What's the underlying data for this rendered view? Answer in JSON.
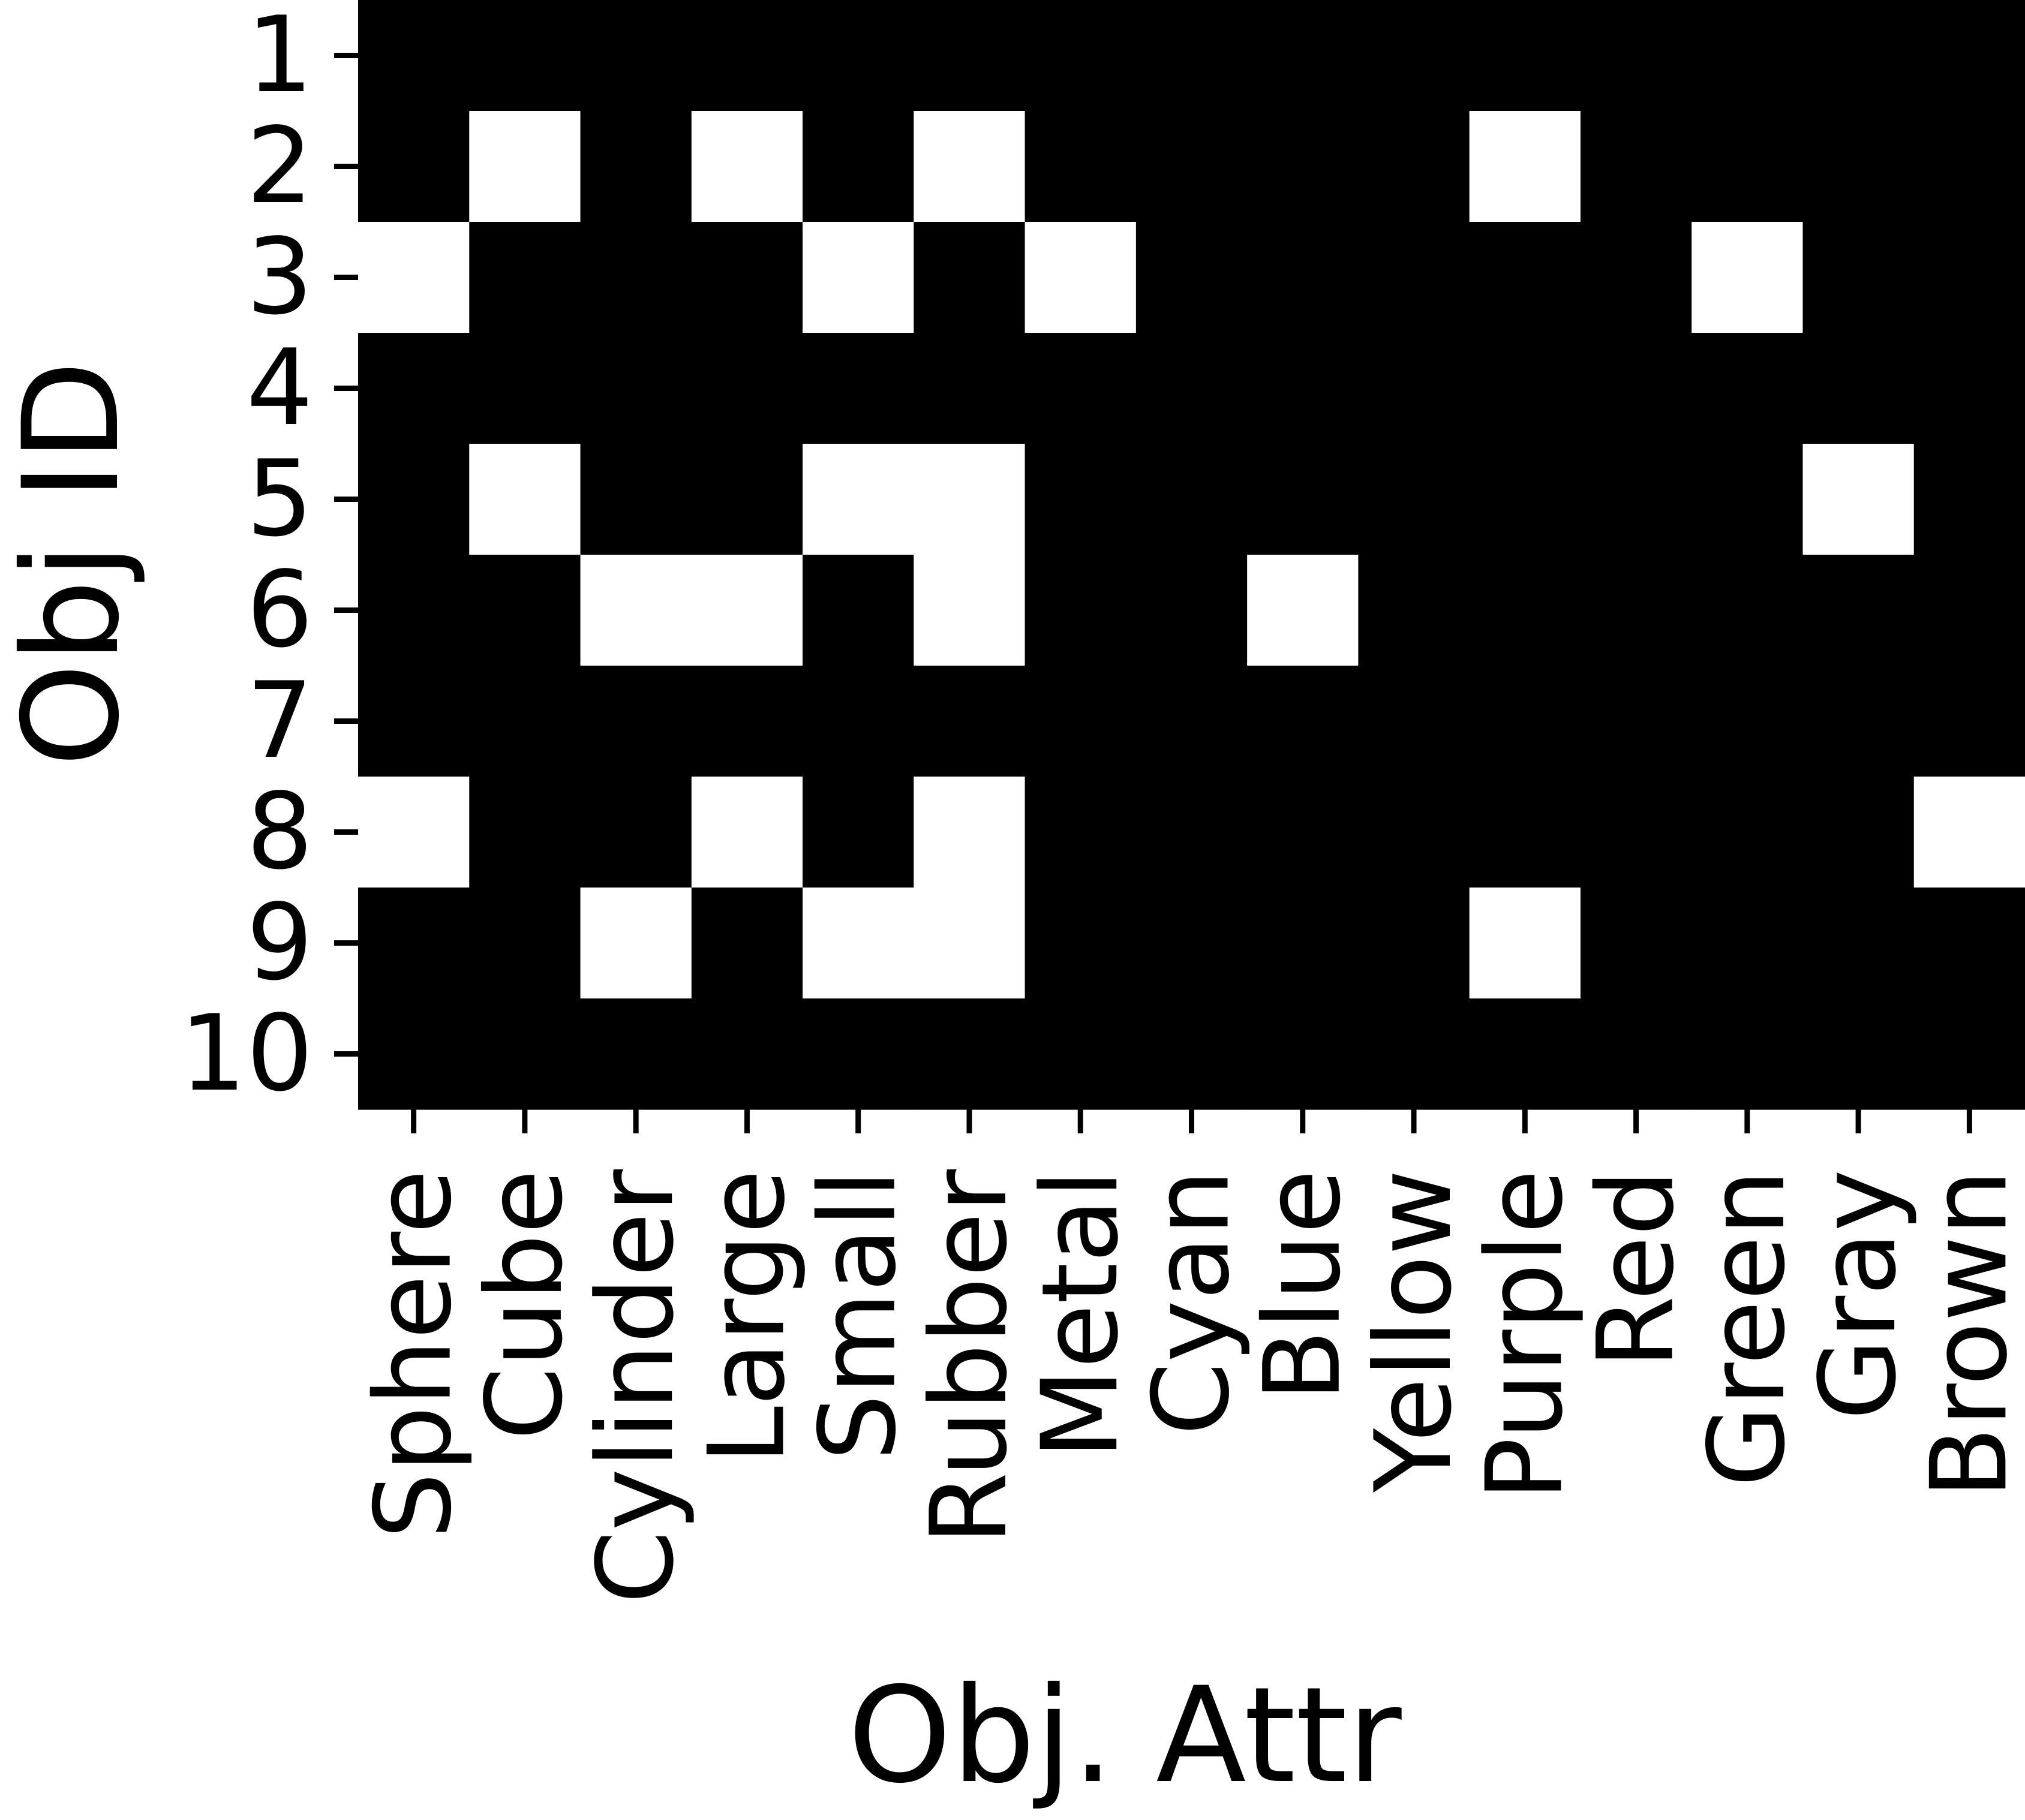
{
  "chart_data": {
    "type": "heatmap",
    "xlabel": "Obj. Attr",
    "ylabel": "Obj ID",
    "categories": [
      "Sphere",
      "Cube",
      "Cylinder",
      "Large",
      "Small",
      "Rubber",
      "Metal",
      "Cyan",
      "Blue",
      "Yellow",
      "Purple",
      "Red",
      "Green",
      "Gray",
      "Brown"
    ],
    "rows": [
      "1",
      "2",
      "3",
      "4",
      "5",
      "6",
      "7",
      "8",
      "9",
      "10"
    ],
    "values": [
      [
        0,
        0,
        0,
        0,
        0,
        0,
        0,
        0,
        0,
        0,
        0,
        0,
        0,
        0,
        0
      ],
      [
        0,
        1,
        0,
        1,
        0,
        1,
        0,
        0,
        0,
        0,
        1,
        0,
        0,
        0,
        0
      ],
      [
        1,
        0,
        0,
        0,
        1,
        0,
        1,
        0,
        0,
        0,
        0,
        0,
        1,
        0,
        0
      ],
      [
        0,
        0,
        0,
        0,
        0,
        0,
        0,
        0,
        0,
        0,
        0,
        0,
        0,
        0,
        0
      ],
      [
        0,
        1,
        0,
        0,
        1,
        1,
        0,
        0,
        0,
        0,
        0,
        0,
        0,
        1,
        0
      ],
      [
        0,
        0,
        1,
        1,
        0,
        1,
        0,
        0,
        1,
        0,
        0,
        0,
        0,
        0,
        0
      ],
      [
        0,
        0,
        0,
        0,
        0,
        0,
        0,
        0,
        0,
        0,
        0,
        0,
        0,
        0,
        0
      ],
      [
        1,
        0,
        0,
        1,
        0,
        1,
        0,
        0,
        0,
        0,
        0,
        0,
        0,
        0,
        1
      ],
      [
        0,
        0,
        1,
        0,
        1,
        1,
        0,
        0,
        0,
        0,
        1,
        0,
        0,
        0,
        0
      ],
      [
        0,
        0,
        0,
        0,
        0,
        0,
        0,
        0,
        0,
        0,
        0,
        0,
        0,
        0,
        0
      ]
    ],
    "colormap": {
      "0": "#000000",
      "1": "#ffffff"
    },
    "grid": false,
    "legend": "none"
  }
}
